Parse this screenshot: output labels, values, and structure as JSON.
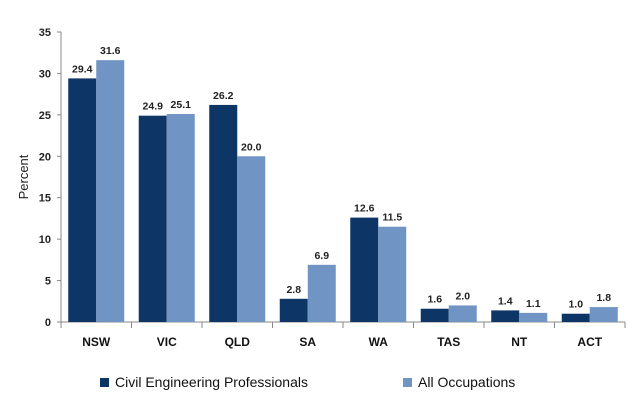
{
  "chart_data": {
    "type": "bar",
    "title": "",
    "xlabel": "",
    "ylabel": "Percent",
    "ylim": [
      0,
      35
    ],
    "yticks": [
      0,
      5,
      10,
      15,
      20,
      25,
      30,
      35
    ],
    "grid": false,
    "legend_position": "bottom",
    "categories": [
      "NSW",
      "VIC",
      "QLD",
      "SA",
      "WA",
      "TAS",
      "NT",
      "ACT"
    ],
    "series": [
      {
        "name": "Civil Engineering Professionals",
        "color": "#0d3566",
        "values": [
          29.4,
          24.9,
          26.2,
          2.8,
          12.6,
          1.6,
          1.4,
          1.0
        ],
        "labels": [
          "29.4",
          "24.9",
          "26.2",
          "2.8",
          "12.6",
          "1.6",
          "1.4",
          "1.0"
        ]
      },
      {
        "name": "All Occupations",
        "color": "#7094c4",
        "values": [
          31.6,
          25.1,
          20.0,
          6.9,
          11.5,
          2.0,
          1.1,
          1.8
        ],
        "labels": [
          "31.6",
          "25.1",
          "20.0",
          "6.9",
          "11.5",
          "2.0",
          "1.1",
          "1.8"
        ]
      }
    ]
  }
}
